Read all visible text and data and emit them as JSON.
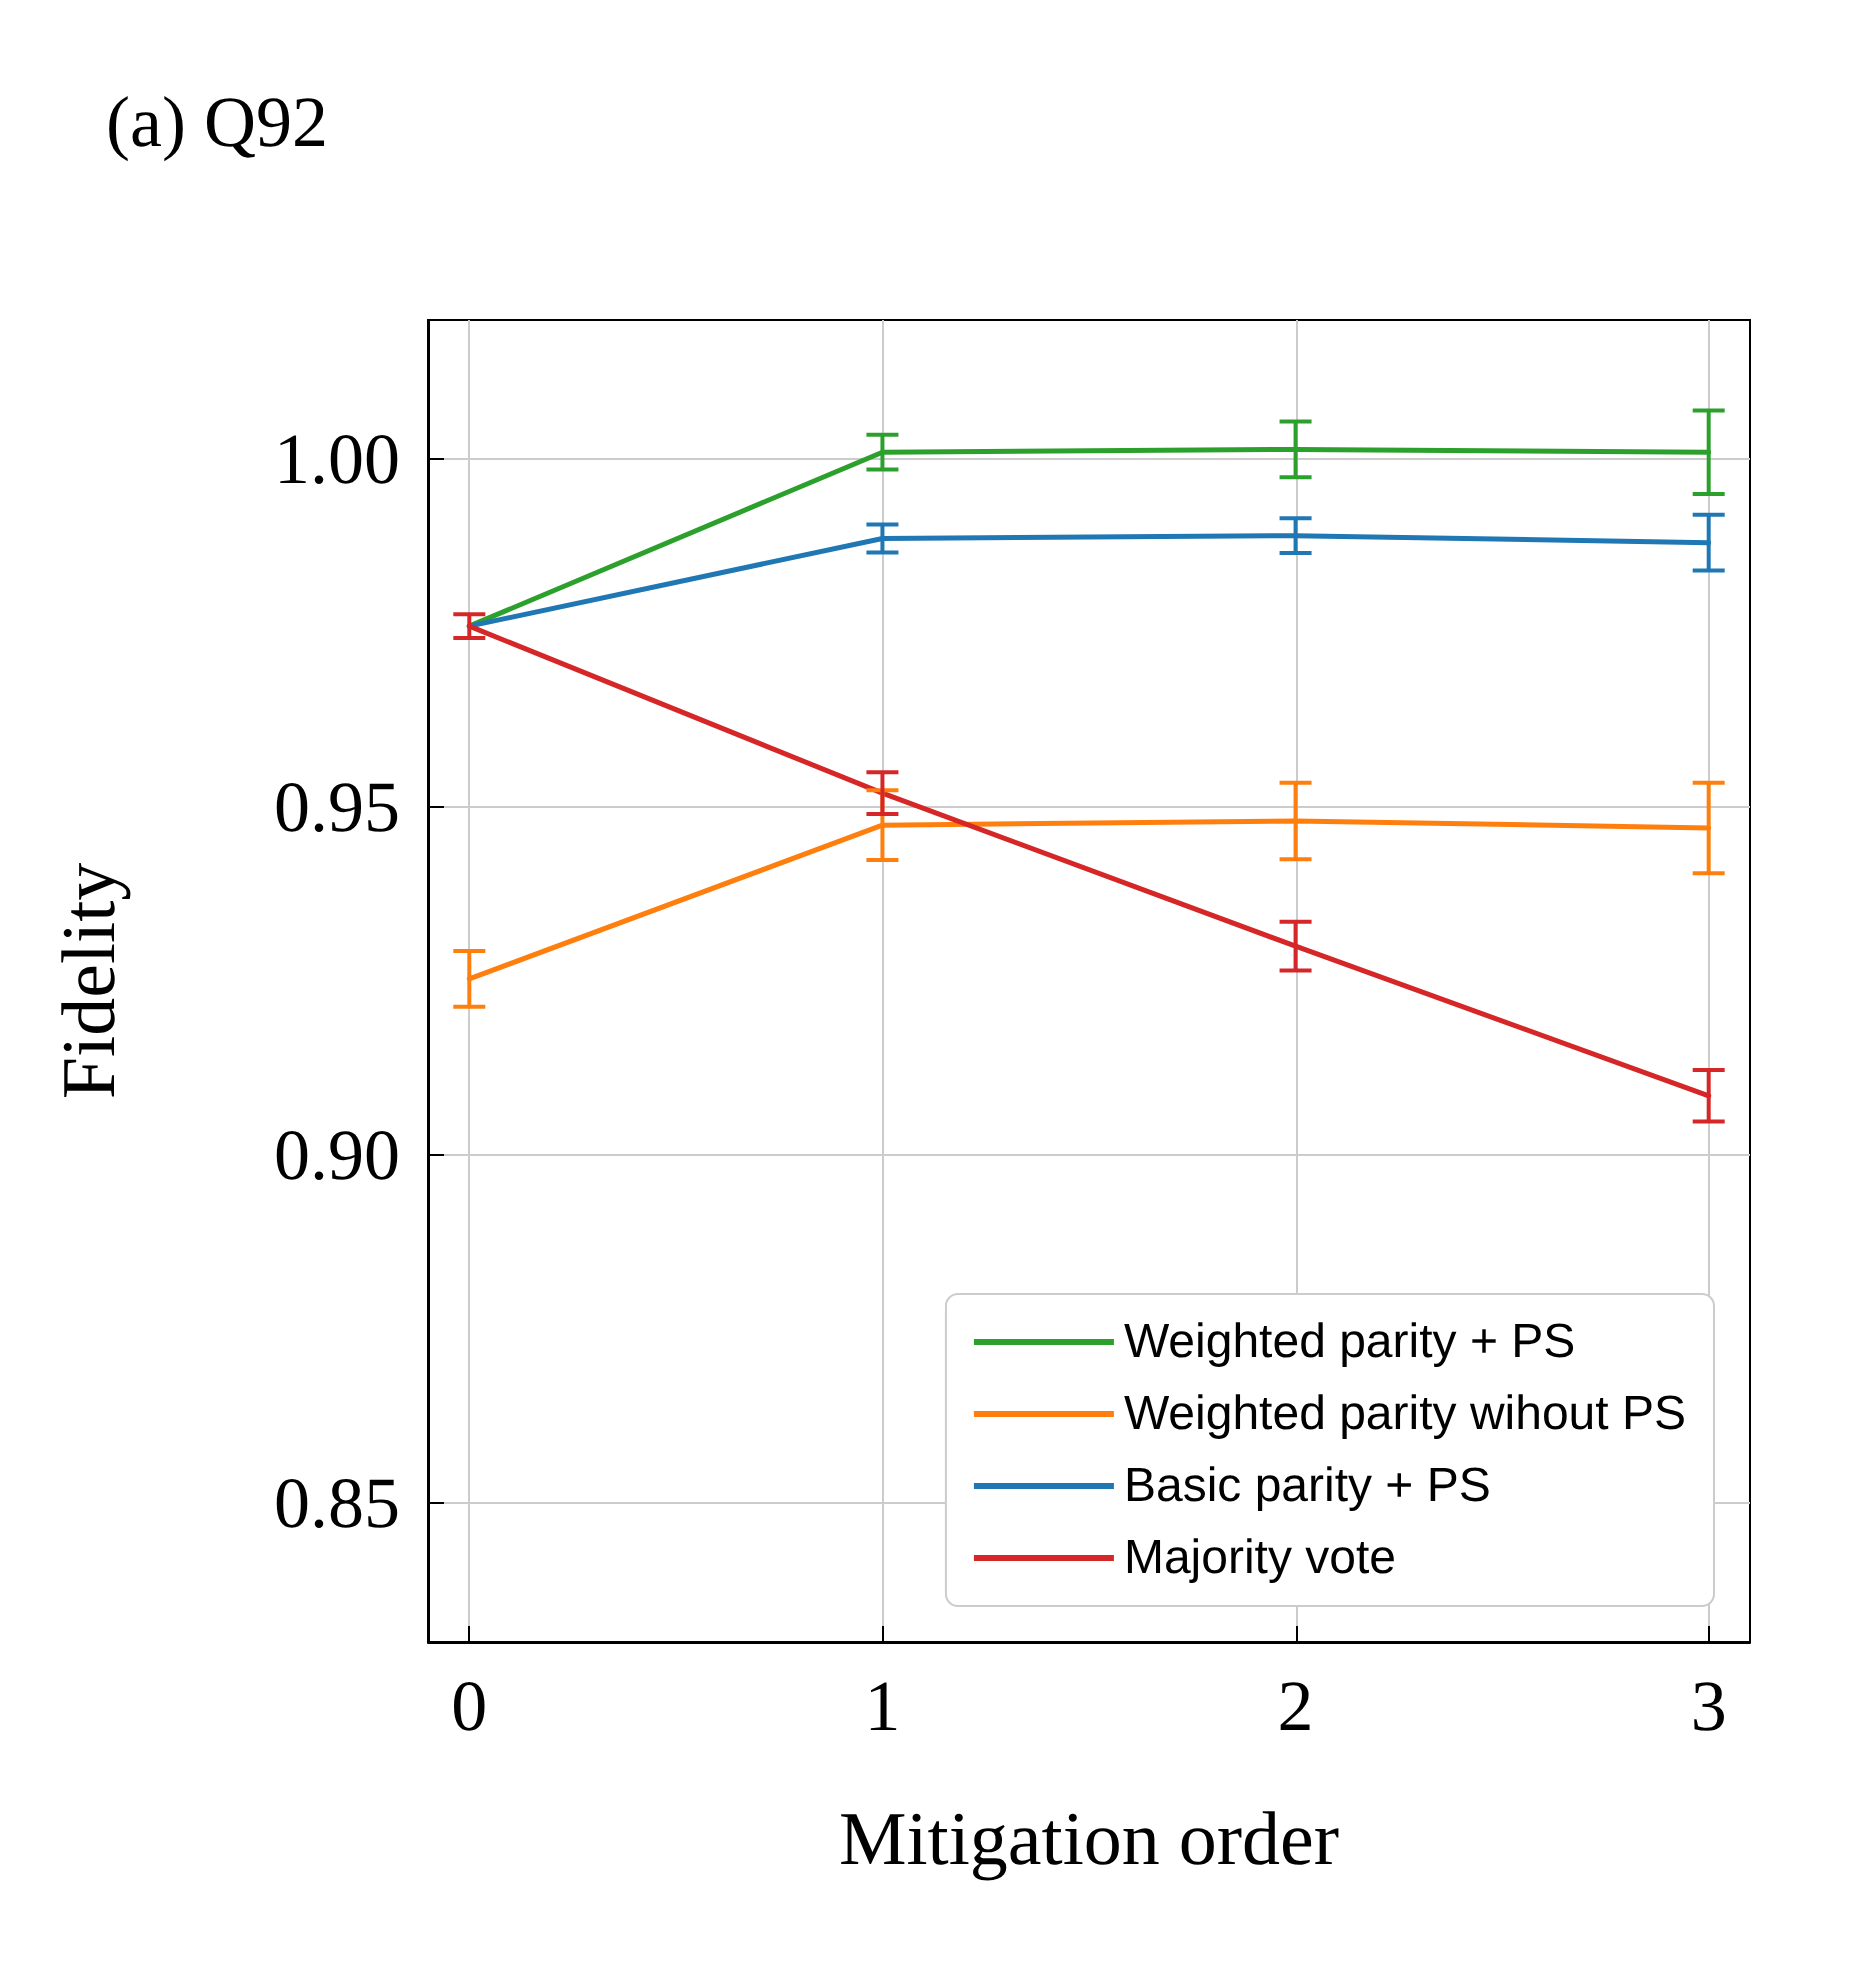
{
  "chart_data": {
    "type": "line",
    "title": "(a) Q92",
    "xlabel": "Mitigation order",
    "ylabel": "Fidelity",
    "x": [
      0,
      1,
      2,
      3
    ],
    "series": [
      {
        "name": "Weighted parity + PS",
        "color": "#2ca02c",
        "values": [
          0.976,
          1.001,
          1.0014,
          1.001
        ],
        "errors": [
          null,
          0.0025,
          0.004,
          0.006
        ]
      },
      {
        "name": "Weighted parity wihout PS",
        "color": "#ff7f0e",
        "values": [
          0.9253,
          0.9474,
          0.948,
          0.947
        ],
        "errors": [
          0.004,
          0.005,
          0.0055,
          0.0065
        ]
      },
      {
        "name": "Basic parity + PS",
        "color": "#1f77b4",
        "values": [
          0.976,
          0.9886,
          0.989,
          0.988
        ],
        "errors": [
          null,
          0.002,
          0.0025,
          0.004
        ]
      },
      {
        "name": "Majority vote",
        "color": "#d62728",
        "values": [
          0.976,
          0.952,
          0.93,
          0.9085
        ],
        "errors": [
          0.0017,
          0.003,
          0.0035,
          0.0037
        ]
      }
    ],
    "xlim": [
      -0.1,
      3.1
    ],
    "xticks": [
      0,
      1,
      2,
      3
    ],
    "ylim": [
      0.83,
      1.02
    ],
    "yticks": [
      {
        "value": 0.85,
        "label": "0.85"
      },
      {
        "value": 0.9,
        "label": "0.90"
      },
      {
        "value": 0.95,
        "label": "0.95"
      },
      {
        "value": 1.0,
        "label": "1.00"
      }
    ],
    "grid": true,
    "legend": "bottom right",
    "marker": "none",
    "line_style": "solid"
  }
}
